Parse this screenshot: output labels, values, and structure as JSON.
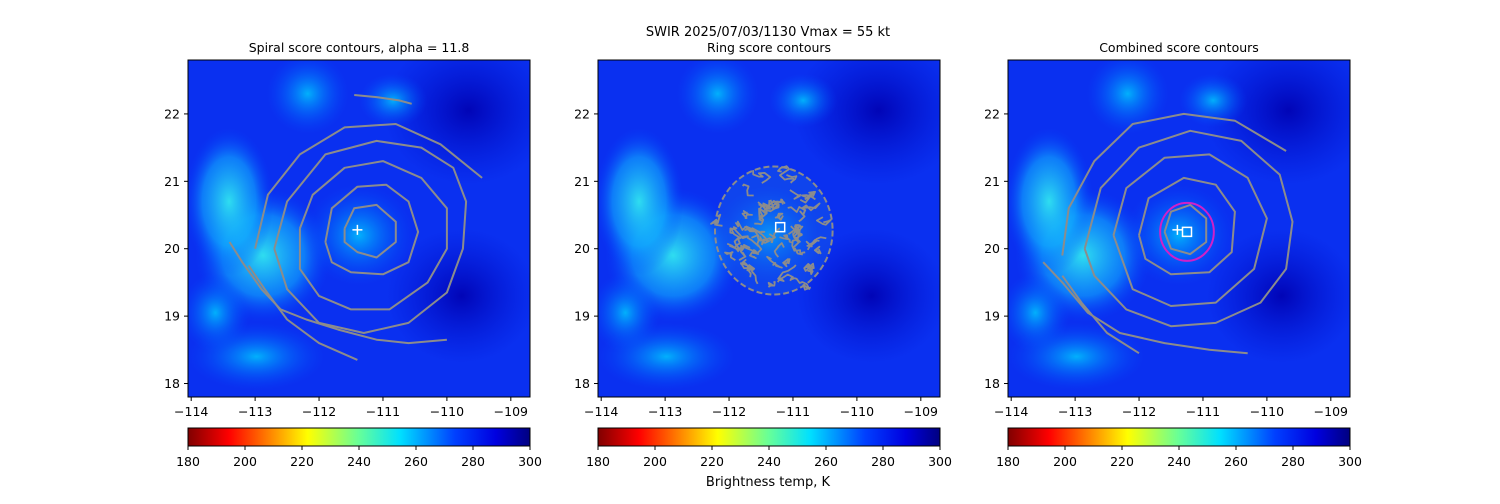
{
  "suptitle_line1": "SWIR  2025/07/03/1130    Vmax = 55 kt",
  "colorbar_label": "Brightness temp, K",
  "chart_data": {
    "type": "heatmap",
    "xlim": [
      -114.05,
      -108.7
    ],
    "ylim": [
      17.8,
      22.8
    ],
    "xticks": [
      -114,
      -113,
      -112,
      -111,
      -110,
      -109
    ],
    "yticks": [
      18,
      19,
      20,
      21,
      22
    ],
    "xtick_labels": [
      "−114",
      "−113",
      "−112",
      "−111",
      "−110",
      "−109"
    ],
    "ytick_labels": [
      "18",
      "19",
      "20",
      "21",
      "22"
    ],
    "colorbar": {
      "min": 180,
      "max": 300,
      "ticks": [
        180,
        200,
        220,
        240,
        260,
        280,
        300
      ],
      "tick_labels": [
        "180",
        "200",
        "220",
        "240",
        "260",
        "280",
        "300"
      ],
      "colormap": "jet_r"
    },
    "contour_color": "#8c8c8c",
    "marker_color": "#ffffff",
    "ring_color": "#d020c8",
    "panels": [
      {
        "id": "spiral",
        "title": "Spiral score contours, alpha = 11.8",
        "center_cross": {
          "lon": -111.4,
          "lat": 20.28
        },
        "contours": [
          [
            [
              -111.6,
              20.3
            ],
            [
              -111.45,
              20.6
            ],
            [
              -111.1,
              20.65
            ],
            [
              -110.8,
              20.4
            ],
            [
              -110.8,
              20.1
            ],
            [
              -111.1,
              19.87
            ],
            [
              -111.4,
              19.95
            ],
            [
              -111.6,
              20.1
            ],
            [
              -111.6,
              20.3
            ]
          ],
          [
            [
              -111.9,
              20.1
            ],
            [
              -111.8,
              20.6
            ],
            [
              -111.4,
              20.92
            ],
            [
              -110.95,
              20.95
            ],
            [
              -110.6,
              20.7
            ],
            [
              -110.45,
              20.25
            ],
            [
              -110.6,
              19.8
            ],
            [
              -111.0,
              19.62
            ],
            [
              -111.5,
              19.65
            ],
            [
              -111.8,
              19.8
            ],
            [
              -111.9,
              20.1
            ]
          ],
          [
            [
              -112.3,
              20.3
            ],
            [
              -112.1,
              20.8
            ],
            [
              -111.6,
              21.2
            ],
            [
              -111.0,
              21.3
            ],
            [
              -110.4,
              21.05
            ],
            [
              -110.0,
              20.6
            ],
            [
              -110.0,
              20.0
            ],
            [
              -110.3,
              19.5
            ],
            [
              -110.9,
              19.1
            ],
            [
              -111.5,
              19.1
            ],
            [
              -112.0,
              19.3
            ],
            [
              -112.3,
              19.7
            ],
            [
              -112.3,
              20.3
            ]
          ],
          [
            [
              -112.7,
              20.0
            ],
            [
              -112.5,
              20.7
            ],
            [
              -111.9,
              21.4
            ],
            [
              -111.1,
              21.6
            ],
            [
              -110.4,
              21.5
            ],
            [
              -109.9,
              21.2
            ],
            [
              -109.7,
              20.7
            ],
            [
              -109.75,
              20.0
            ],
            [
              -110.0,
              19.35
            ],
            [
              -110.6,
              18.9
            ],
            [
              -111.3,
              18.75
            ],
            [
              -112.0,
              18.9
            ],
            [
              -112.5,
              19.4
            ],
            [
              -112.7,
              20.0
            ]
          ],
          [
            [
              -113.0,
              20.0
            ],
            [
              -112.8,
              20.8
            ],
            [
              -112.3,
              21.4
            ],
            [
              -111.6,
              21.8
            ],
            [
              -110.8,
              21.85
            ],
            [
              -110.1,
              21.55
            ],
            [
              -109.45,
              21.05
            ]
          ],
          [
            [
              -113.4,
              20.1
            ],
            [
              -113.2,
              19.8
            ],
            [
              -112.9,
              19.4
            ],
            [
              -112.6,
              19.1
            ],
            [
              -112.2,
              18.95
            ],
            [
              -111.7,
              18.8
            ],
            [
              -111.1,
              18.65
            ],
            [
              -110.6,
              18.6
            ],
            [
              -110.0,
              18.65
            ]
          ],
          [
            [
              -113.1,
              19.75
            ],
            [
              -112.85,
              19.4
            ],
            [
              -112.5,
              18.95
            ],
            [
              -112.0,
              18.6
            ],
            [
              -111.4,
              18.35
            ]
          ],
          [
            [
              -111.45,
              22.28
            ],
            [
              -111.1,
              22.25
            ],
            [
              -110.75,
              22.2
            ],
            [
              -110.55,
              22.15
            ]
          ]
        ]
      },
      {
        "id": "ring",
        "title": "Ring score contours",
        "center_square": {
          "lon": -111.2,
          "lat": 20.32
        },
        "ring_region": {
          "lon": -111.3,
          "lat": 20.27,
          "r_lon": 0.92,
          "r_lat": 0.95
        }
      },
      {
        "id": "combined",
        "title": "Combined score contours",
        "center_cross": {
          "lon": -111.4,
          "lat": 20.28
        },
        "center_square": {
          "lon": -111.25,
          "lat": 20.25
        },
        "ring_circle": {
          "lon": -111.25,
          "lat": 20.25,
          "r_lon": 0.42,
          "r_lat": 0.43
        },
        "contours": [
          [
            [
              -111.6,
              20.25
            ],
            [
              -111.5,
              20.55
            ],
            [
              -111.2,
              20.65
            ],
            [
              -110.95,
              20.45
            ],
            [
              -110.95,
              20.1
            ],
            [
              -111.2,
              19.92
            ],
            [
              -111.5,
              20.0
            ],
            [
              -111.6,
              20.25
            ]
          ],
          [
            [
              -112.0,
              20.2
            ],
            [
              -111.85,
              20.75
            ],
            [
              -111.3,
              21.05
            ],
            [
              -110.8,
              20.95
            ],
            [
              -110.5,
              20.55
            ],
            [
              -110.55,
              19.95
            ],
            [
              -110.9,
              19.65
            ],
            [
              -111.5,
              19.62
            ],
            [
              -111.9,
              19.85
            ],
            [
              -112.0,
              20.2
            ]
          ],
          [
            [
              -112.4,
              20.2
            ],
            [
              -112.2,
              20.9
            ],
            [
              -111.6,
              21.35
            ],
            [
              -110.9,
              21.4
            ],
            [
              -110.3,
              21.05
            ],
            [
              -110.0,
              20.45
            ],
            [
              -110.2,
              19.7
            ],
            [
              -110.8,
              19.2
            ],
            [
              -111.5,
              19.15
            ],
            [
              -112.1,
              19.4
            ],
            [
              -112.4,
              20.2
            ]
          ],
          [
            [
              -112.85,
              20.0
            ],
            [
              -112.6,
              20.9
            ],
            [
              -112.0,
              21.5
            ],
            [
              -111.2,
              21.75
            ],
            [
              -110.4,
              21.6
            ],
            [
              -109.8,
              21.1
            ],
            [
              -109.6,
              20.4
            ],
            [
              -109.7,
              19.7
            ],
            [
              -110.1,
              19.2
            ],
            [
              -110.8,
              18.9
            ],
            [
              -111.5,
              18.85
            ],
            [
              -112.2,
              19.1
            ],
            [
              -112.7,
              19.6
            ],
            [
              -112.85,
              20.0
            ]
          ],
          [
            [
              -113.2,
              19.9
            ],
            [
              -113.1,
              20.6
            ],
            [
              -112.7,
              21.3
            ],
            [
              -112.1,
              21.85
            ],
            [
              -111.3,
              22.0
            ],
            [
              -110.5,
              21.9
            ],
            [
              -109.7,
              21.45
            ]
          ],
          [
            [
              -113.5,
              19.8
            ],
            [
              -113.2,
              19.5
            ],
            [
              -112.8,
              19.05
            ],
            [
              -112.3,
              18.75
            ],
            [
              -111.6,
              18.6
            ],
            [
              -110.9,
              18.5
            ],
            [
              -110.3,
              18.45
            ]
          ],
          [
            [
              -113.2,
              19.6
            ],
            [
              -112.9,
              19.2
            ],
            [
              -112.5,
              18.75
            ],
            [
              -112.0,
              18.45
            ]
          ]
        ]
      }
    ]
  }
}
